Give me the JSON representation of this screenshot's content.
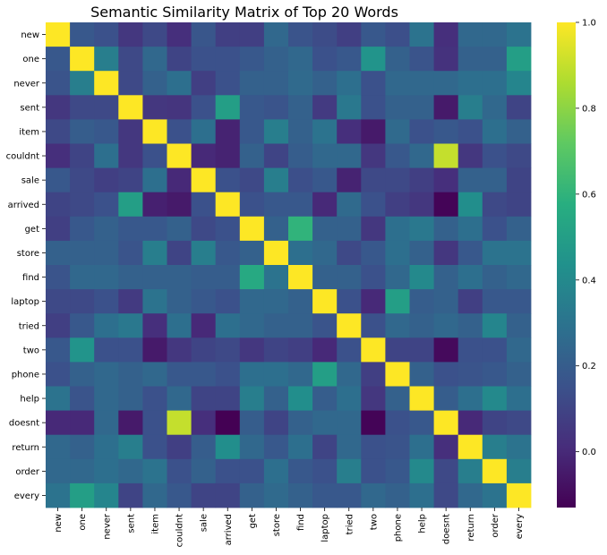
{
  "chart_data": {
    "type": "heatmap",
    "title": "Semantic Similarity Matrix of Top 20 Words",
    "colormap": "viridis",
    "x_labels": [
      "new",
      "one",
      "never",
      "sent",
      "item",
      "couldnt",
      "sale",
      "arrived",
      "get",
      "store",
      "find",
      "laptop",
      "tried",
      "two",
      "phone",
      "help",
      "doesnt",
      "return",
      "order",
      "every"
    ],
    "y_labels": [
      "new",
      "one",
      "never",
      "sent",
      "item",
      "couldnt",
      "sale",
      "arrived",
      "get",
      "store",
      "find",
      "laptop",
      "tried",
      "two",
      "phone",
      "help",
      "doesnt",
      "return",
      "order",
      "every"
    ],
    "vmin": -0.13,
    "vmax": 1.0,
    "colorbar_ticks": [
      0.0,
      0.2,
      0.4,
      0.6,
      0.8,
      1.0
    ],
    "colorbar_tick_labels": [
      "0.0",
      "0.2",
      "0.4",
      "0.6",
      "0.8",
      "1.0"
    ],
    "values": [
      [
        1.0,
        0.18,
        0.15,
        0.05,
        0.12,
        0.02,
        0.17,
        0.08,
        0.08,
        0.25,
        0.16,
        0.13,
        0.08,
        0.18,
        0.14,
        0.3,
        0.02,
        0.25,
        0.25,
        0.3
      ],
      [
        0.18,
        1.0,
        0.35,
        0.12,
        0.25,
        0.1,
        0.15,
        0.15,
        0.18,
        0.22,
        0.25,
        0.15,
        0.18,
        0.45,
        0.22,
        0.16,
        0.03,
        0.22,
        0.22,
        0.5
      ],
      [
        0.16,
        0.35,
        1.0,
        0.12,
        0.22,
        0.28,
        0.08,
        0.15,
        0.22,
        0.22,
        0.26,
        0.22,
        0.28,
        0.15,
        0.25,
        0.25,
        0.25,
        0.28,
        0.28,
        0.38
      ],
      [
        0.05,
        0.12,
        0.12,
        1.0,
        0.05,
        0.04,
        0.15,
        0.5,
        0.18,
        0.16,
        0.22,
        0.06,
        0.32,
        0.15,
        0.22,
        0.22,
        -0.05,
        0.35,
        0.25,
        0.1
      ],
      [
        0.12,
        0.2,
        0.18,
        0.05,
        1.0,
        0.15,
        0.28,
        -0.02,
        0.18,
        0.35,
        0.22,
        0.3,
        0.02,
        -0.05,
        0.26,
        0.15,
        0.18,
        0.15,
        0.28,
        0.22
      ],
      [
        0.02,
        0.1,
        0.28,
        0.05,
        0.15,
        1.0,
        0.0,
        -0.02,
        0.22,
        0.1,
        0.2,
        0.25,
        0.25,
        0.05,
        0.18,
        0.25,
        0.9,
        0.05,
        0.15,
        0.12
      ],
      [
        0.18,
        0.12,
        0.08,
        0.1,
        0.28,
        0.0,
        1.0,
        0.15,
        0.12,
        0.35,
        0.14,
        0.18,
        -0.02,
        0.12,
        0.12,
        0.08,
        0.02,
        0.22,
        0.22,
        0.1
      ],
      [
        0.1,
        0.12,
        0.15,
        0.5,
        -0.03,
        -0.05,
        0.15,
        1.0,
        0.15,
        0.18,
        0.18,
        0.0,
        0.26,
        0.15,
        0.08,
        0.05,
        -0.12,
        0.42,
        0.12,
        0.1
      ],
      [
        0.08,
        0.18,
        0.22,
        0.18,
        0.18,
        0.22,
        0.12,
        0.15,
        1.0,
        0.22,
        0.6,
        0.22,
        0.22,
        0.05,
        0.28,
        0.32,
        0.22,
        0.28,
        0.15,
        0.22
      ],
      [
        0.22,
        0.22,
        0.22,
        0.16,
        0.35,
        0.1,
        0.35,
        0.18,
        0.22,
        1.0,
        0.28,
        0.25,
        0.12,
        0.18,
        0.28,
        0.22,
        0.05,
        0.18,
        0.3,
        0.3
      ],
      [
        0.16,
        0.25,
        0.25,
        0.22,
        0.22,
        0.22,
        0.2,
        0.2,
        0.55,
        0.3,
        1.0,
        0.22,
        0.22,
        0.15,
        0.25,
        0.4,
        0.22,
        0.28,
        0.22,
        0.25
      ],
      [
        0.12,
        0.12,
        0.15,
        0.06,
        0.3,
        0.22,
        0.18,
        0.15,
        0.25,
        0.25,
        0.22,
        1.0,
        0.15,
        0.0,
        0.5,
        0.2,
        0.22,
        0.08,
        0.18,
        0.18
      ],
      [
        0.08,
        0.18,
        0.28,
        0.32,
        0.02,
        0.28,
        0.0,
        0.28,
        0.25,
        0.22,
        0.22,
        0.16,
        1.0,
        0.15,
        0.25,
        0.22,
        0.25,
        0.22,
        0.38,
        0.22
      ],
      [
        0.18,
        0.45,
        0.15,
        0.15,
        -0.05,
        0.05,
        0.1,
        0.12,
        0.05,
        0.1,
        0.08,
        0.0,
        0.15,
        1.0,
        0.1,
        0.1,
        -0.1,
        0.15,
        0.15,
        0.25
      ],
      [
        0.15,
        0.22,
        0.25,
        0.22,
        0.25,
        0.18,
        0.18,
        0.15,
        0.28,
        0.28,
        0.25,
        0.5,
        0.25,
        0.08,
        1.0,
        0.22,
        0.15,
        0.16,
        0.18,
        0.22
      ],
      [
        0.3,
        0.16,
        0.25,
        0.22,
        0.15,
        0.25,
        0.1,
        0.1,
        0.35,
        0.22,
        0.42,
        0.2,
        0.28,
        0.05,
        0.22,
        1.0,
        0.2,
        0.28,
        0.4,
        0.28
      ],
      [
        0.0,
        0.0,
        0.25,
        -0.05,
        0.15,
        0.9,
        0.02,
        -0.13,
        0.2,
        0.1,
        0.22,
        0.25,
        0.25,
        -0.12,
        0.15,
        0.18,
        1.0,
        0.0,
        0.1,
        0.12
      ],
      [
        0.25,
        0.22,
        0.28,
        0.35,
        0.15,
        0.08,
        0.2,
        0.42,
        0.25,
        0.18,
        0.28,
        0.1,
        0.25,
        0.15,
        0.16,
        0.28,
        0.02,
        1.0,
        0.35,
        0.3
      ],
      [
        0.25,
        0.25,
        0.28,
        0.25,
        0.3,
        0.15,
        0.22,
        0.15,
        0.15,
        0.28,
        0.18,
        0.15,
        0.35,
        0.15,
        0.18,
        0.4,
        0.12,
        0.35,
        1.0,
        0.35
      ],
      [
        0.3,
        0.5,
        0.38,
        0.1,
        0.25,
        0.18,
        0.1,
        0.1,
        0.22,
        0.26,
        0.22,
        0.18,
        0.18,
        0.25,
        0.22,
        0.28,
        0.12,
        0.25,
        0.3,
        1.0
      ]
    ]
  }
}
